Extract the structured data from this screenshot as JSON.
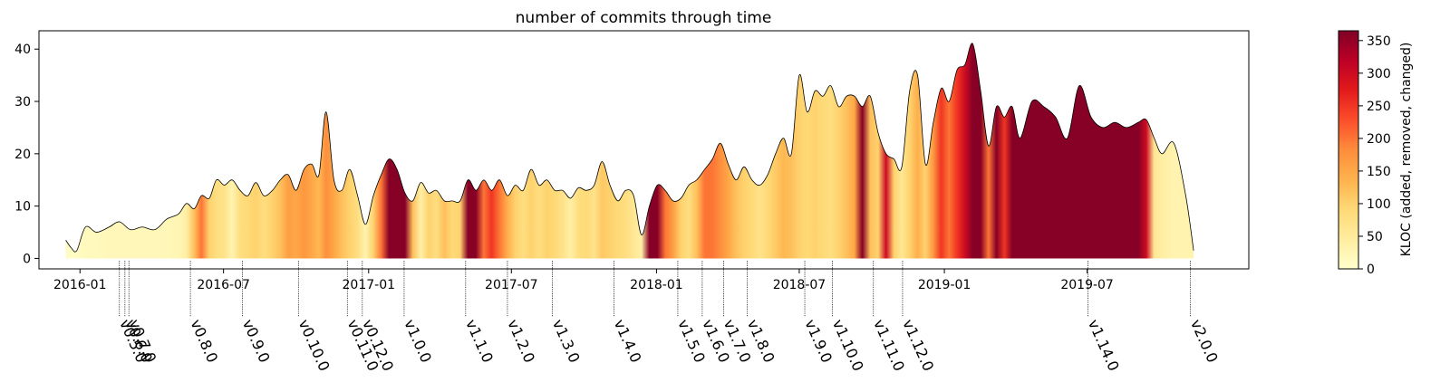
{
  "chart_data": {
    "type": "area",
    "title": "number of commits through time",
    "xlabel": "",
    "ylabel": "",
    "ylim": [
      -2,
      43.5
    ],
    "xlim": [
      "2015-11-10",
      "2020-01-22"
    ],
    "y_ticks": [
      0,
      10,
      20,
      30,
      40
    ],
    "x_ticks": [
      "2016-01",
      "2016-07",
      "2017-01",
      "2017-07",
      "2018-01",
      "2018-07",
      "2019-01",
      "2019-07"
    ],
    "colorbar": {
      "label": "KLOC (added, removed, changed)",
      "min": 0,
      "max": 365,
      "ticks": [
        0,
        50,
        100,
        150,
        200,
        250,
        300,
        350
      ],
      "colormap": [
        "#ffffcc",
        "#ffeda0",
        "#fed976",
        "#feb24c",
        "#fd8d3c",
        "#fc4e2a",
        "#e31a1c",
        "#bd0026",
        "#800026"
      ]
    },
    "releases": [
      {
        "label": "v0.5.0",
        "date": "2016-02-20"
      },
      {
        "label": "v0.6.0",
        "date": "2016-02-27"
      },
      {
        "label": "v0.7.0",
        "date": "2016-03-03"
      },
      {
        "label": "v0.8.0",
        "date": "2016-05-20"
      },
      {
        "label": "v0.9.0",
        "date": "2016-07-25"
      },
      {
        "label": "v0.10.0",
        "date": "2016-10-04"
      },
      {
        "label": "v0.11.0",
        "date": "2016-12-05"
      },
      {
        "label": "v0.12.0",
        "date": "2016-12-24"
      },
      {
        "label": "v1.0.0",
        "date": "2017-02-15"
      },
      {
        "label": "v1.1.0",
        "date": "2017-05-04"
      },
      {
        "label": "v1.2.0",
        "date": "2017-06-26"
      },
      {
        "label": "v1.3.0",
        "date": "2017-08-22"
      },
      {
        "label": "v1.4.0",
        "date": "2017-11-08"
      },
      {
        "label": "v1.5.0",
        "date": "2018-01-28"
      },
      {
        "label": "v1.6.0",
        "date": "2018-02-28"
      },
      {
        "label": "v1.7.0",
        "date": "2018-03-27"
      },
      {
        "label": "v1.8.0",
        "date": "2018-04-26"
      },
      {
        "label": "v1.9.0",
        "date": "2018-07-08"
      },
      {
        "label": "v1.10.0",
        "date": "2018-08-12"
      },
      {
        "label": "v1.11.0",
        "date": "2018-10-03"
      },
      {
        "label": "v1.12.0",
        "date": "2018-11-09"
      },
      {
        "label": "v1.14.0",
        "date": "2019-07-02"
      },
      {
        "label": "v2.0.0",
        "date": "2019-11-09"
      }
    ],
    "series": [
      {
        "points": [
          {
            "date": "2015-12-14",
            "commits": 3.5,
            "kloc": 10
          },
          {
            "date": "2015-12-21",
            "commits": 2,
            "kloc": 8
          },
          {
            "date": "2015-12-28",
            "commits": 1.5,
            "kloc": 10
          },
          {
            "date": "2016-01-08",
            "commits": 6,
            "kloc": 15
          },
          {
            "date": "2016-01-22",
            "commits": 5,
            "kloc": 15
          },
          {
            "date": "2016-02-07",
            "commits": 6,
            "kloc": 20
          },
          {
            "date": "2016-02-20",
            "commits": 7,
            "kloc": 20
          },
          {
            "date": "2016-03-05",
            "commits": 5.5,
            "kloc": 20
          },
          {
            "date": "2016-03-20",
            "commits": 6,
            "kloc": 20
          },
          {
            "date": "2016-04-05",
            "commits": 5.5,
            "kloc": 20
          },
          {
            "date": "2016-04-20",
            "commits": 7.5,
            "kloc": 20
          },
          {
            "date": "2016-05-05",
            "commits": 8.5,
            "kloc": 25
          },
          {
            "date": "2016-05-15",
            "commits": 10.5,
            "kloc": 40
          },
          {
            "date": "2016-05-25",
            "commits": 9.5,
            "kloc": 120
          },
          {
            "date": "2016-06-03",
            "commits": 12,
            "kloc": 200
          },
          {
            "date": "2016-06-13",
            "commits": 11.5,
            "kloc": 100
          },
          {
            "date": "2016-06-22",
            "commits": 15,
            "kloc": 80
          },
          {
            "date": "2016-07-02",
            "commits": 14,
            "kloc": 70
          },
          {
            "date": "2016-07-12",
            "commits": 15,
            "kloc": 30
          },
          {
            "date": "2016-07-22",
            "commits": 13,
            "kloc": 80
          },
          {
            "date": "2016-08-01",
            "commits": 12,
            "kloc": 90
          },
          {
            "date": "2016-08-11",
            "commits": 14.5,
            "kloc": 100
          },
          {
            "date": "2016-08-21",
            "commits": 12,
            "kloc": 80
          },
          {
            "date": "2016-09-01",
            "commits": 13,
            "kloc": 100
          },
          {
            "date": "2016-09-11",
            "commits": 15,
            "kloc": 120
          },
          {
            "date": "2016-09-21",
            "commits": 16,
            "kloc": 160
          },
          {
            "date": "2016-10-01",
            "commits": 13,
            "kloc": 150
          },
          {
            "date": "2016-10-11",
            "commits": 17,
            "kloc": 170
          },
          {
            "date": "2016-10-21",
            "commits": 18,
            "kloc": 150
          },
          {
            "date": "2016-10-30",
            "commits": 16,
            "kloc": 130
          },
          {
            "date": "2016-11-08",
            "commits": 28,
            "kloc": 180
          },
          {
            "date": "2016-11-18",
            "commits": 15,
            "kloc": 150
          },
          {
            "date": "2016-11-28",
            "commits": 13,
            "kloc": 120
          },
          {
            "date": "2016-12-08",
            "commits": 17,
            "kloc": 100
          },
          {
            "date": "2016-12-18",
            "commits": 12,
            "kloc": 80
          },
          {
            "date": "2016-12-28",
            "commits": 6.5,
            "kloc": 30
          },
          {
            "date": "2017-01-07",
            "commits": 12,
            "kloc": 100
          },
          {
            "date": "2017-01-17",
            "commits": 16,
            "kloc": 200
          },
          {
            "date": "2017-01-27",
            "commits": 19,
            "kloc": 360
          },
          {
            "date": "2017-02-06",
            "commits": 17,
            "kloc": 360
          },
          {
            "date": "2017-02-16",
            "commits": 12.5,
            "kloc": 360
          },
          {
            "date": "2017-02-26",
            "commits": 11,
            "kloc": 120
          },
          {
            "date": "2017-03-08",
            "commits": 14.5,
            "kloc": 40
          },
          {
            "date": "2017-03-18",
            "commits": 12.5,
            "kloc": 100
          },
          {
            "date": "2017-03-28",
            "commits": 13,
            "kloc": 80
          },
          {
            "date": "2017-04-07",
            "commits": 11,
            "kloc": 120
          },
          {
            "date": "2017-04-17",
            "commits": 11,
            "kloc": 90
          },
          {
            "date": "2017-04-27",
            "commits": 11,
            "kloc": 100
          },
          {
            "date": "2017-05-07",
            "commits": 15,
            "kloc": 360
          },
          {
            "date": "2017-05-17",
            "commits": 13,
            "kloc": 360
          },
          {
            "date": "2017-05-27",
            "commits": 15,
            "kloc": 200
          },
          {
            "date": "2017-06-06",
            "commits": 13,
            "kloc": 250
          },
          {
            "date": "2017-06-16",
            "commits": 15,
            "kloc": 200
          },
          {
            "date": "2017-06-26",
            "commits": 12,
            "kloc": 140
          },
          {
            "date": "2017-07-06",
            "commits": 14,
            "kloc": 100
          },
          {
            "date": "2017-07-16",
            "commits": 13,
            "kloc": 80
          },
          {
            "date": "2017-07-26",
            "commits": 17,
            "kloc": 100
          },
          {
            "date": "2017-08-05",
            "commits": 14,
            "kloc": 80
          },
          {
            "date": "2017-08-15",
            "commits": 15,
            "kloc": 100
          },
          {
            "date": "2017-08-25",
            "commits": 13,
            "kloc": 90
          },
          {
            "date": "2017-09-04",
            "commits": 13,
            "kloc": 70
          },
          {
            "date": "2017-09-14",
            "commits": 11.5,
            "kloc": 40
          },
          {
            "date": "2017-09-24",
            "commits": 13.5,
            "kloc": 80
          },
          {
            "date": "2017-10-04",
            "commits": 13,
            "kloc": 90
          },
          {
            "date": "2017-10-14",
            "commits": 14,
            "kloc": 70
          },
          {
            "date": "2017-10-24",
            "commits": 18.5,
            "kloc": 110
          },
          {
            "date": "2017-11-03",
            "commits": 14,
            "kloc": 100
          },
          {
            "date": "2017-11-13",
            "commits": 11,
            "kloc": 90
          },
          {
            "date": "2017-11-23",
            "commits": 13,
            "kloc": 80
          },
          {
            "date": "2017-12-03",
            "commits": 12,
            "kloc": 60
          },
          {
            "date": "2017-12-13",
            "commits": 4.5,
            "kloc": 40
          },
          {
            "date": "2017-12-23",
            "commits": 10,
            "kloc": 360
          },
          {
            "date": "2018-01-02",
            "commits": 14,
            "kloc": 360
          },
          {
            "date": "2018-01-12",
            "commits": 13,
            "kloc": 200
          },
          {
            "date": "2018-01-22",
            "commits": 11,
            "kloc": 160
          },
          {
            "date": "2018-02-01",
            "commits": 11.5,
            "kloc": 100
          },
          {
            "date": "2018-02-11",
            "commits": 14,
            "kloc": 80
          },
          {
            "date": "2018-02-21",
            "commits": 15,
            "kloc": 120
          },
          {
            "date": "2018-03-03",
            "commits": 17,
            "kloc": 200
          },
          {
            "date": "2018-03-13",
            "commits": 19,
            "kloc": 200
          },
          {
            "date": "2018-03-23",
            "commits": 22,
            "kloc": 180
          },
          {
            "date": "2018-04-02",
            "commits": 18,
            "kloc": 150
          },
          {
            "date": "2018-04-12",
            "commits": 15,
            "kloc": 120
          },
          {
            "date": "2018-04-22",
            "commits": 17.5,
            "kloc": 100
          },
          {
            "date": "2018-05-02",
            "commits": 15,
            "kloc": 90
          },
          {
            "date": "2018-05-12",
            "commits": 14,
            "kloc": 70
          },
          {
            "date": "2018-05-22",
            "commits": 16,
            "kloc": 90
          },
          {
            "date": "2018-06-01",
            "commits": 20,
            "kloc": 110
          },
          {
            "date": "2018-06-11",
            "commits": 23,
            "kloc": 130
          },
          {
            "date": "2018-06-21",
            "commits": 20,
            "kloc": 120
          },
          {
            "date": "2018-07-01",
            "commits": 35,
            "kloc": 100
          },
          {
            "date": "2018-07-11",
            "commits": 28,
            "kloc": 90
          },
          {
            "date": "2018-07-21",
            "commits": 32,
            "kloc": 100
          },
          {
            "date": "2018-07-31",
            "commits": 31,
            "kloc": 90
          },
          {
            "date": "2018-08-10",
            "commits": 33,
            "kloc": 80
          },
          {
            "date": "2018-08-20",
            "commits": 29,
            "kloc": 100
          },
          {
            "date": "2018-08-30",
            "commits": 31,
            "kloc": 120
          },
          {
            "date": "2018-09-09",
            "commits": 31,
            "kloc": 150
          },
          {
            "date": "2018-09-19",
            "commits": 29,
            "kloc": 360
          },
          {
            "date": "2018-09-29",
            "commits": 31,
            "kloc": 120
          },
          {
            "date": "2018-10-09",
            "commits": 24,
            "kloc": 100
          },
          {
            "date": "2018-10-19",
            "commits": 20,
            "kloc": 300
          },
          {
            "date": "2018-10-29",
            "commits": 19,
            "kloc": 100
          },
          {
            "date": "2018-11-08",
            "commits": 17.5,
            "kloc": 60
          },
          {
            "date": "2018-11-18",
            "commits": 32,
            "kloc": 100
          },
          {
            "date": "2018-11-28",
            "commits": 35,
            "kloc": 140
          },
          {
            "date": "2018-12-08",
            "commits": 18,
            "kloc": 100
          },
          {
            "date": "2018-12-18",
            "commits": 26,
            "kloc": 170
          },
          {
            "date": "2018-12-28",
            "commits": 32.5,
            "kloc": 250
          },
          {
            "date": "2019-01-07",
            "commits": 30,
            "kloc": 200
          },
          {
            "date": "2019-01-17",
            "commits": 36,
            "kloc": 250
          },
          {
            "date": "2019-01-27",
            "commits": 37,
            "kloc": 300
          },
          {
            "date": "2019-02-06",
            "commits": 41,
            "kloc": 360
          },
          {
            "date": "2019-02-16",
            "commits": 32,
            "kloc": 360
          },
          {
            "date": "2019-02-26",
            "commits": 21.5,
            "kloc": 200
          },
          {
            "date": "2019-03-08",
            "commits": 29,
            "kloc": 360
          },
          {
            "date": "2019-03-18",
            "commits": 27,
            "kloc": 250
          },
          {
            "date": "2019-03-28",
            "commits": 29,
            "kloc": 360
          },
          {
            "date": "2019-04-07",
            "commits": 23,
            "kloc": 360
          },
          {
            "date": "2019-04-22",
            "commits": 30,
            "kloc": 360
          },
          {
            "date": "2019-05-07",
            "commits": 29,
            "kloc": 360
          },
          {
            "date": "2019-05-22",
            "commits": 27,
            "kloc": 360
          },
          {
            "date": "2019-06-06",
            "commits": 23,
            "kloc": 360
          },
          {
            "date": "2019-06-21",
            "commits": 33,
            "kloc": 360
          },
          {
            "date": "2019-07-06",
            "commits": 27,
            "kloc": 360
          },
          {
            "date": "2019-07-21",
            "commits": 25,
            "kloc": 360
          },
          {
            "date": "2019-08-05",
            "commits": 26,
            "kloc": 360
          },
          {
            "date": "2019-08-20",
            "commits": 25,
            "kloc": 360
          },
          {
            "date": "2019-09-04",
            "commits": 26,
            "kloc": 360
          },
          {
            "date": "2019-09-14",
            "commits": 26.5,
            "kloc": 300
          },
          {
            "date": "2019-09-24",
            "commits": 23,
            "kloc": 60
          },
          {
            "date": "2019-10-04",
            "commits": 20,
            "kloc": 40
          },
          {
            "date": "2019-10-19",
            "commits": 22,
            "kloc": 30
          },
          {
            "date": "2019-11-03",
            "commits": 12,
            "kloc": 30
          },
          {
            "date": "2019-11-13",
            "commits": 1.5,
            "kloc": 30
          }
        ]
      }
    ]
  }
}
